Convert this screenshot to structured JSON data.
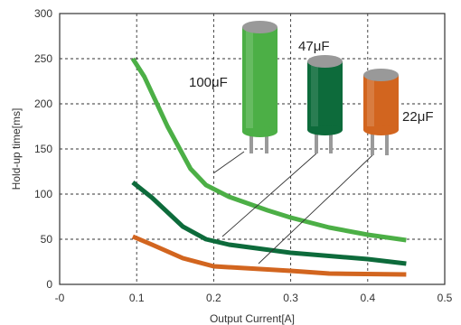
{
  "chart_data": {
    "type": "line",
    "title": "",
    "xlabel": "Output Current[A]",
    "ylabel": "Hold-up time[ms]",
    "xlim": [
      0,
      0.5
    ],
    "ylim": [
      0,
      300
    ],
    "x_ticks": [
      0,
      0.1,
      0.2,
      0.3,
      0.4,
      0.5
    ],
    "x_tick_labels": [
      "-0",
      "0.1",
      "0.2",
      "0.3",
      "0.4",
      "0.5"
    ],
    "y_ticks": [
      0,
      50,
      100,
      150,
      200,
      250,
      300
    ],
    "grid": true,
    "series": [
      {
        "name": "100μF",
        "color": "#4caf46",
        "points": [
          [
            0.095,
            250
          ],
          [
            0.11,
            230
          ],
          [
            0.14,
            175
          ],
          [
            0.17,
            128
          ],
          [
            0.19,
            110
          ],
          [
            0.22,
            97
          ],
          [
            0.27,
            82
          ],
          [
            0.3,
            74
          ],
          [
            0.35,
            63
          ],
          [
            0.4,
            55
          ],
          [
            0.45,
            49
          ]
        ]
      },
      {
        "name": "47μF",
        "color": "#0d6b3b",
        "points": [
          [
            0.095,
            113
          ],
          [
            0.12,
            96
          ],
          [
            0.16,
            64
          ],
          [
            0.19,
            50
          ],
          [
            0.22,
            44
          ],
          [
            0.3,
            35
          ],
          [
            0.4,
            28
          ],
          [
            0.45,
            23
          ]
        ]
      },
      {
        "name": "22μF",
        "color": "#d2651f",
        "points": [
          [
            0.095,
            53
          ],
          [
            0.12,
            44
          ],
          [
            0.16,
            29
          ],
          [
            0.2,
            20
          ],
          [
            0.3,
            15
          ],
          [
            0.35,
            12
          ],
          [
            0.45,
            11
          ]
        ]
      }
    ],
    "annotations": [
      {
        "label_text": "100",
        "unit_text": "μF",
        "color": "#4caf46",
        "cap_color": "#999999"
      },
      {
        "label_text": "47",
        "unit_text": "μF",
        "color": "#0d6b3b",
        "cap_color": "#999999"
      },
      {
        "label_text": "22",
        "unit_text": "μF",
        "color": "#d2651f",
        "cap_color": "#999999"
      }
    ]
  }
}
